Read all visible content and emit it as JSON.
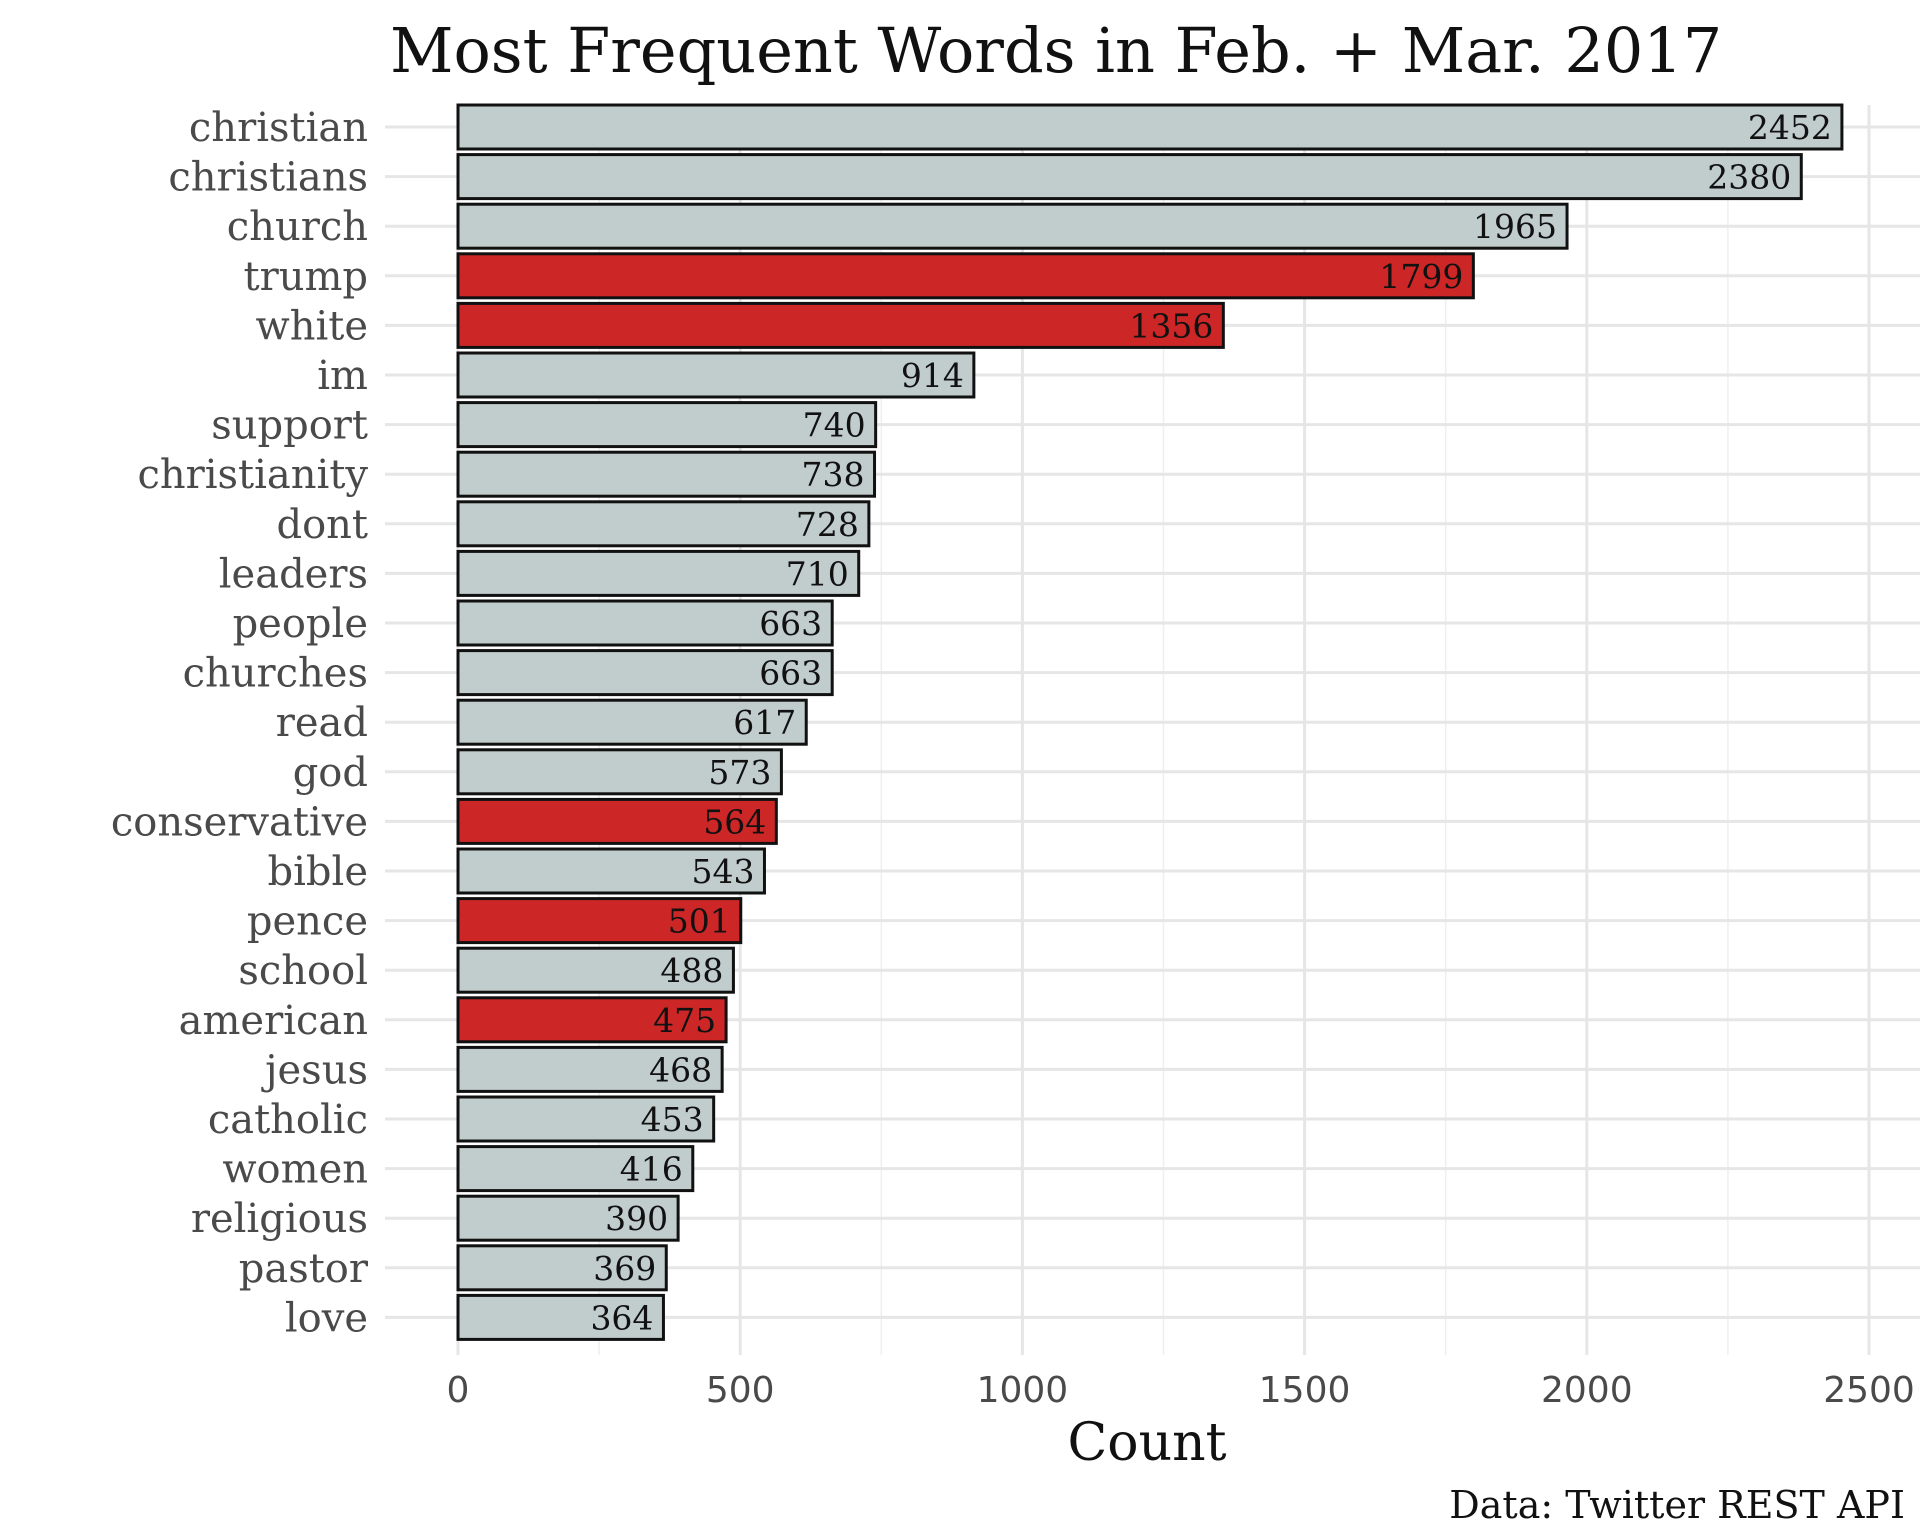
{
  "chart_data": {
    "type": "bar",
    "orientation": "horizontal",
    "title": "Most Frequent Words in Feb. + Mar. 2017",
    "xlabel": "Count",
    "ylabel": "",
    "caption": "Data: Twitter REST API",
    "xlim": [
      0,
      2500
    ],
    "xticks": [
      0,
      500,
      1000,
      1500,
      2000,
      2500
    ],
    "grid": true,
    "legend": "none",
    "colors": {
      "default": "#c1cccc",
      "highlight": "#cc2626",
      "outline": "#111111"
    },
    "categories": [
      "christian",
      "christians",
      "church",
      "trump",
      "white",
      "im",
      "support",
      "christianity",
      "dont",
      "leaders",
      "people",
      "churches",
      "read",
      "god",
      "conservative",
      "bible",
      "pence",
      "school",
      "american",
      "jesus",
      "catholic",
      "women",
      "religious",
      "pastor",
      "love"
    ],
    "values": [
      2452,
      2380,
      1965,
      1799,
      1356,
      914,
      740,
      738,
      728,
      710,
      663,
      663,
      617,
      573,
      564,
      543,
      501,
      488,
      475,
      468,
      453,
      416,
      390,
      369,
      364
    ],
    "highlighted": [
      false,
      false,
      false,
      true,
      true,
      false,
      false,
      false,
      false,
      false,
      false,
      false,
      false,
      false,
      true,
      false,
      true,
      false,
      true,
      false,
      false,
      false,
      false,
      false,
      false
    ]
  }
}
